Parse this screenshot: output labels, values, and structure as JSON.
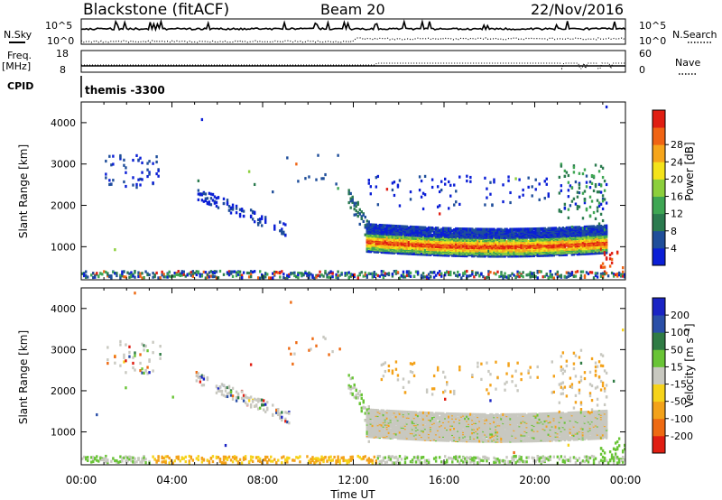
{
  "header": {
    "station": "Blackstone (fitACF)",
    "beam": "Beam 20",
    "date": "22/Nov/2016"
  },
  "top_panels": {
    "nsky_label": "N.Sky",
    "nsearch_label": "N.Search",
    "noise_ticks_left": [
      "10^5",
      "10^0"
    ],
    "noise_ticks_right": [
      "10^5",
      "10^0"
    ],
    "freq_label": "Freq.",
    "freq_unit": "[MHz]",
    "freq_ticks": [
      "18",
      "8"
    ],
    "nave_label": "Nave",
    "nave_ticks": [
      "60",
      "0"
    ],
    "cpid_label": "CPID",
    "cpid_value": "themis -3300"
  },
  "colors": {
    "power": [
      "#0b1fd6",
      "#1f4e9a",
      "#2b7b4f",
      "#3ea653",
      "#8ccf3c",
      "#f4e31a",
      "#f6a51b",
      "#f06414",
      "#e01e12"
    ],
    "velocity": [
      "#1a24c4",
      "#2a4fa8",
      "#2f7b44",
      "#69c436",
      "#c8c8c0",
      "#f6d31a",
      "#f3a21a",
      "#ee6a12",
      "#e01e12"
    ]
  },
  "chart_data": [
    {
      "type": "heatmap",
      "name": "power",
      "ylabel": "Slant Range [km]",
      "xlabel": "Time UT",
      "x_ticks": [
        "00:00",
        "04:00",
        "08:00",
        "12:00",
        "16:00",
        "20:00",
        "00:00"
      ],
      "y_ticks": [
        "1000",
        "2000",
        "3000",
        "4000"
      ],
      "ylim": [
        200,
        4500
      ],
      "colorbar": {
        "label": "Power [dB]",
        "ticks": [
          "4",
          "8",
          "12",
          "16",
          "20",
          "24",
          "28"
        ]
      },
      "features": [
        {
          "desc": "scattered echoes 01:00-03:30",
          "x_range_h": [
            1.0,
            3.5
          ],
          "y_range_km": [
            2400,
            3200
          ]
        },
        {
          "desc": "sloping band 05:00-09:00",
          "x_range_h": [
            5.0,
            9.0
          ],
          "y_range_km": [
            1300,
            2300
          ]
        },
        {
          "desc": "main ionospheric band 12:30-23:00",
          "x_range_h": [
            12.5,
            23.0
          ],
          "y_range_km": [
            900,
            1500
          ]
        },
        {
          "desc": "ground scatter near range gate 0",
          "x_range_h": [
            0,
            24
          ],
          "y_range_km": [
            200,
            400
          ]
        }
      ]
    },
    {
      "type": "heatmap",
      "name": "velocity",
      "ylabel": "Slant Range [km]",
      "xlabel": "Time UT",
      "x_ticks": [
        "00:00",
        "04:00",
        "08:00",
        "12:00",
        "16:00",
        "20:00",
        "00:00"
      ],
      "y_ticks": [
        "1000",
        "2000",
        "3000",
        "4000"
      ],
      "ylim": [
        200,
        4500
      ],
      "colorbar": {
        "label": "Velocity [m s⁻¹]",
        "ticks": [
          "200",
          "100",
          "50",
          "15",
          "-15",
          "-50",
          "-100",
          "-200"
        ]
      }
    }
  ],
  "axis": {
    "xlabel": "Time UT",
    "ylabel": "Slant Range [km]",
    "power_cbar_label": "Power [dB]",
    "velocity_cbar_label": "Velocity [m s⁻¹]"
  }
}
